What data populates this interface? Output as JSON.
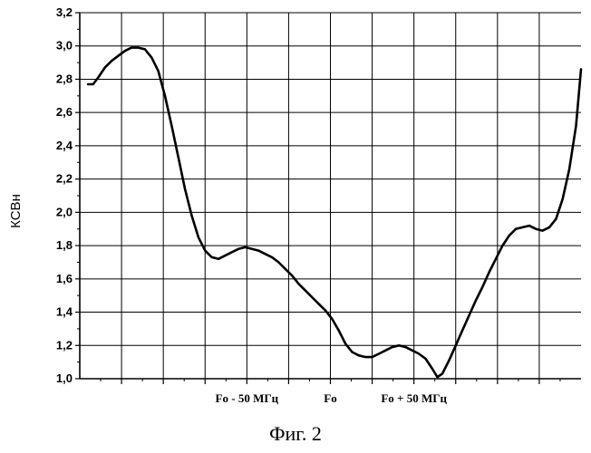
{
  "caption": "Фиг. 2",
  "chart_data": {
    "type": "line",
    "title": "",
    "ylabel": "КСВн",
    "xlabel": "",
    "ylim": [
      1.0,
      3.2
    ],
    "y_ticks": [
      "1,0",
      "1,2",
      "1,4",
      "1,6",
      "1,8",
      "2,0",
      "2,2",
      "2,4",
      "2,6",
      "2,8",
      "3,0",
      "3,2"
    ],
    "x_tick_labels": [
      {
        "label": "Fo - 50 МГц",
        "x": -50
      },
      {
        "label": "Fo",
        "x": 0
      },
      {
        "label": "Fo + 50 МГц",
        "x": 50
      }
    ],
    "xlim": [
      -150,
      150
    ],
    "grid": true,
    "series": [
      {
        "color": "#000000",
        "points": [
          [
            -145,
            2.77
          ],
          [
            -142,
            2.77
          ],
          [
            -139,
            2.81
          ],
          [
            -135,
            2.87
          ],
          [
            -131,
            2.91
          ],
          [
            -127,
            2.94
          ],
          [
            -123,
            2.97
          ],
          [
            -119,
            2.99
          ],
          [
            -115,
            2.99
          ],
          [
            -111,
            2.98
          ],
          [
            -107,
            2.93
          ],
          [
            -103,
            2.85
          ],
          [
            -99,
            2.7
          ],
          [
            -95,
            2.52
          ],
          [
            -91,
            2.33
          ],
          [
            -87,
            2.14
          ],
          [
            -83,
            1.98
          ],
          [
            -79,
            1.85
          ],
          [
            -75,
            1.77
          ],
          [
            -71,
            1.73
          ],
          [
            -67,
            1.72
          ],
          [
            -63,
            1.74
          ],
          [
            -59,
            1.76
          ],
          [
            -55,
            1.78
          ],
          [
            -51,
            1.79
          ],
          [
            -47,
            1.78
          ],
          [
            -43,
            1.77
          ],
          [
            -39,
            1.75
          ],
          [
            -35,
            1.73
          ],
          [
            -31,
            1.7
          ],
          [
            -27,
            1.66
          ],
          [
            -23,
            1.62
          ],
          [
            -19,
            1.57
          ],
          [
            -15,
            1.53
          ],
          [
            -11,
            1.49
          ],
          [
            -7,
            1.45
          ],
          [
            -3,
            1.41
          ],
          [
            1,
            1.36
          ],
          [
            5,
            1.29
          ],
          [
            9,
            1.21
          ],
          [
            13,
            1.16
          ],
          [
            17,
            1.14
          ],
          [
            21,
            1.13
          ],
          [
            25,
            1.13
          ],
          [
            29,
            1.15
          ],
          [
            33,
            1.17
          ],
          [
            37,
            1.19
          ],
          [
            41,
            1.2
          ],
          [
            45,
            1.19
          ],
          [
            49,
            1.17
          ],
          [
            53,
            1.15
          ],
          [
            57,
            1.12
          ],
          [
            61,
            1.06
          ],
          [
            64,
            1.01
          ],
          [
            67,
            1.03
          ],
          [
            71,
            1.11
          ],
          [
            75,
            1.2
          ],
          [
            79,
            1.29
          ],
          [
            83,
            1.38
          ],
          [
            87,
            1.47
          ],
          [
            91,
            1.55
          ],
          [
            95,
            1.64
          ],
          [
            99,
            1.72
          ],
          [
            103,
            1.8
          ],
          [
            107,
            1.86
          ],
          [
            111,
            1.9
          ],
          [
            115,
            1.91
          ],
          [
            119,
            1.92
          ],
          [
            123,
            1.9
          ],
          [
            127,
            1.89
          ],
          [
            131,
            1.91
          ],
          [
            135,
            1.96
          ],
          [
            139,
            2.08
          ],
          [
            143,
            2.26
          ],
          [
            147,
            2.52
          ],
          [
            150,
            2.86
          ]
        ]
      }
    ]
  }
}
